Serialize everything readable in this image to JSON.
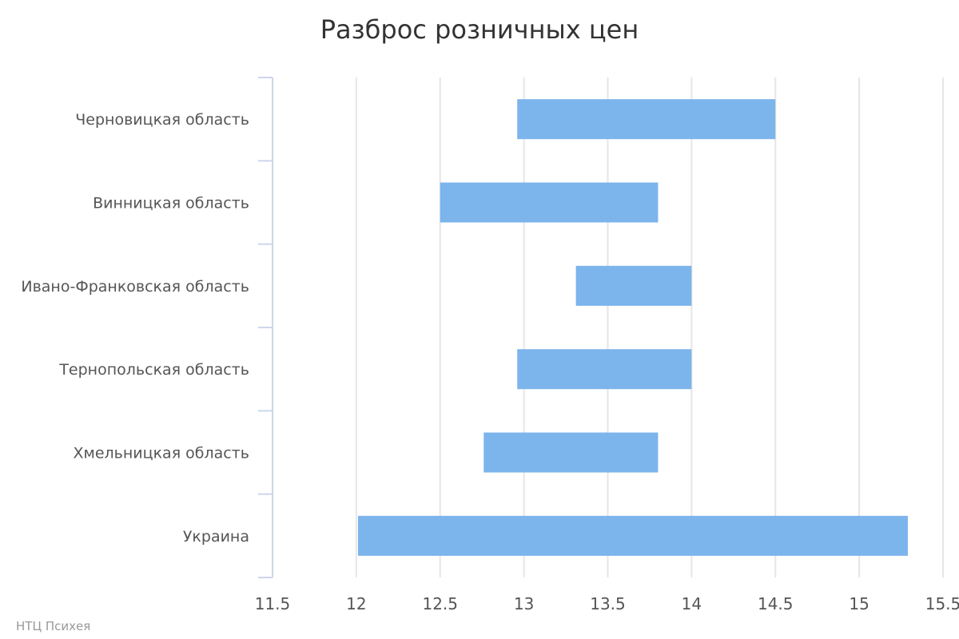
{
  "chart_data": {
    "type": "bar",
    "orientation": "horizontal",
    "bar_style": "range",
    "title": "Разброс розничных цен",
    "categories": [
      "Черновицкая область",
      "Винницкая область",
      "Ивано-Франковская область",
      "Тернопольская область",
      "Хмельницкая область",
      "Украина"
    ],
    "series": [
      {
        "low": [
          12.96,
          12.5,
          13.31,
          12.96,
          12.76,
          12.01
        ],
        "high": [
          14.5,
          13.8,
          14.0,
          14.0,
          13.8,
          15.29
        ],
        "color": "#7cb4ec"
      }
    ],
    "x_ticks": [
      "11.5",
      "12",
      "12.5",
      "13",
      "13.5",
      "14",
      "14.5",
      "15",
      "15.5"
    ],
    "xlim": [
      11.5,
      15.5
    ],
    "grid": true,
    "legend": "none"
  },
  "credits": "НТЦ Психея"
}
